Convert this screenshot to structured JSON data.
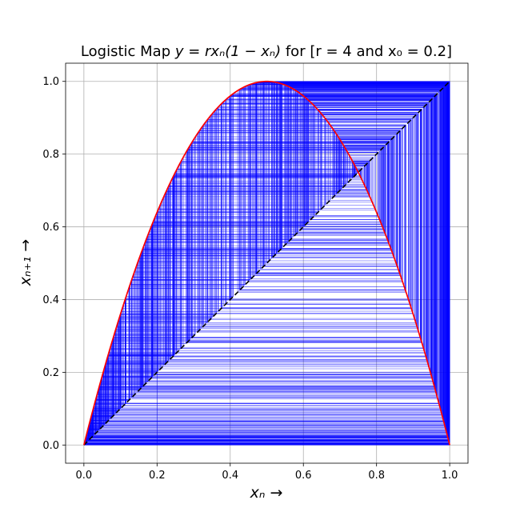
{
  "chart_data": {
    "type": "line",
    "title_prefix": "Logistic Map ",
    "title_formula": "y = rxₙ(1 − xₙ)",
    "title_suffix": " for [r = 4 and x₀ = 0.2]",
    "xlabel": "xₙ →",
    "ylabel": "xₙ₊₁ →",
    "r": 4,
    "x0": 0.2,
    "iterations": 1000,
    "xlim": [
      -0.05,
      1.05
    ],
    "ylim": [
      -0.05,
      1.05
    ],
    "xticks": [
      0.0,
      0.2,
      0.4,
      0.6,
      0.8,
      1.0
    ],
    "yticks": [
      0.0,
      0.2,
      0.4,
      0.6,
      0.8,
      1.0
    ],
    "tick_labels": [
      "0.0",
      "0.2",
      "0.4",
      "0.6",
      "0.8",
      "1.0"
    ],
    "grid": true,
    "series": [
      {
        "role": "curve",
        "color": "#ff0000"
      },
      {
        "role": "identity",
        "color": "#000000",
        "style": "dashed"
      },
      {
        "role": "cobweb",
        "color": "#0000ff"
      }
    ]
  }
}
